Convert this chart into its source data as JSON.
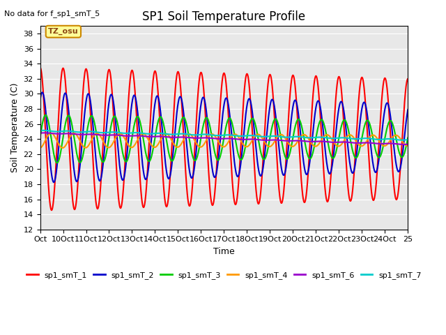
{
  "title": "SP1 Soil Temperature Profile",
  "xlabel": "Time",
  "ylabel": "Soil Temperature (C)",
  "note": "No data for f_sp1_smT_5",
  "tz_label": "TZ_osu",
  "ylim": [
    12,
    39
  ],
  "yticks": [
    12,
    14,
    16,
    18,
    20,
    22,
    24,
    26,
    28,
    30,
    32,
    34,
    36,
    38
  ],
  "x_tick_positions": [
    0,
    1,
    2,
    3,
    4,
    5,
    6,
    7,
    8,
    9,
    10,
    11,
    12,
    13,
    14,
    15,
    16
  ],
  "x_tick_labels": [
    "Oct",
    "10Oct",
    "11Oct",
    "12Oct",
    "13Oct",
    "14Oct",
    "15Oct",
    "16Oct",
    "17Oct",
    "18Oct",
    "19Oct",
    "20Oct",
    "21Oct",
    "22Oct",
    "23Oct",
    "24Oct",
    "25"
  ],
  "series_names": [
    "sp1_smT_1",
    "sp1_smT_2",
    "sp1_smT_3",
    "sp1_smT_4",
    "sp1_smT_6",
    "sp1_smT_7"
  ],
  "series_colors": [
    "#FF0000",
    "#0000CC",
    "#00CC00",
    "#FF9900",
    "#9900CC",
    "#00CCCC"
  ],
  "series_lw": [
    1.5,
    1.5,
    1.5,
    1.5,
    1.5,
    1.5
  ],
  "plot_bg": "#E8E8E8"
}
